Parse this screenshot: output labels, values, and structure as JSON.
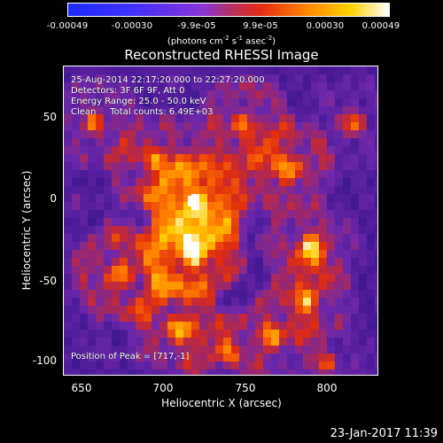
{
  "colorbar": {
    "ticks": [
      "-0.00049",
      "-0.00030",
      "-9.9e-05",
      "9.9e-05",
      "0.00030",
      "0.00049"
    ],
    "units_prefix": "(photons cm",
    "units_exp1": "-2",
    "units_mid1": " s",
    "units_exp2": "-1",
    "units_mid2": " asec",
    "units_exp3": "-2",
    "units_suffix": ")"
  },
  "title": "Reconstructed RHESSI Image",
  "info": {
    "line1": "25-Aug-2014 22:17:20.000 to 22:27:20.000",
    "line2": "Detectors: 3F 6F 9F, Att 0",
    "line3": "Energy Range: 25.0 - 50.0 keV",
    "line4": "Clean     Total counts: 6.49E+03",
    "peak": "Position of Peak = [717,-1]"
  },
  "axes": {
    "ylabel": "Heliocentric Y (arcsec)",
    "xlabel": "Heliocentric X (arcsec)",
    "yticks": [
      "50",
      "0",
      "-50",
      "-100"
    ],
    "xticks": [
      "650",
      "700",
      "750",
      "800"
    ]
  },
  "timestamp": "23-Jan-2017 11:39"
}
